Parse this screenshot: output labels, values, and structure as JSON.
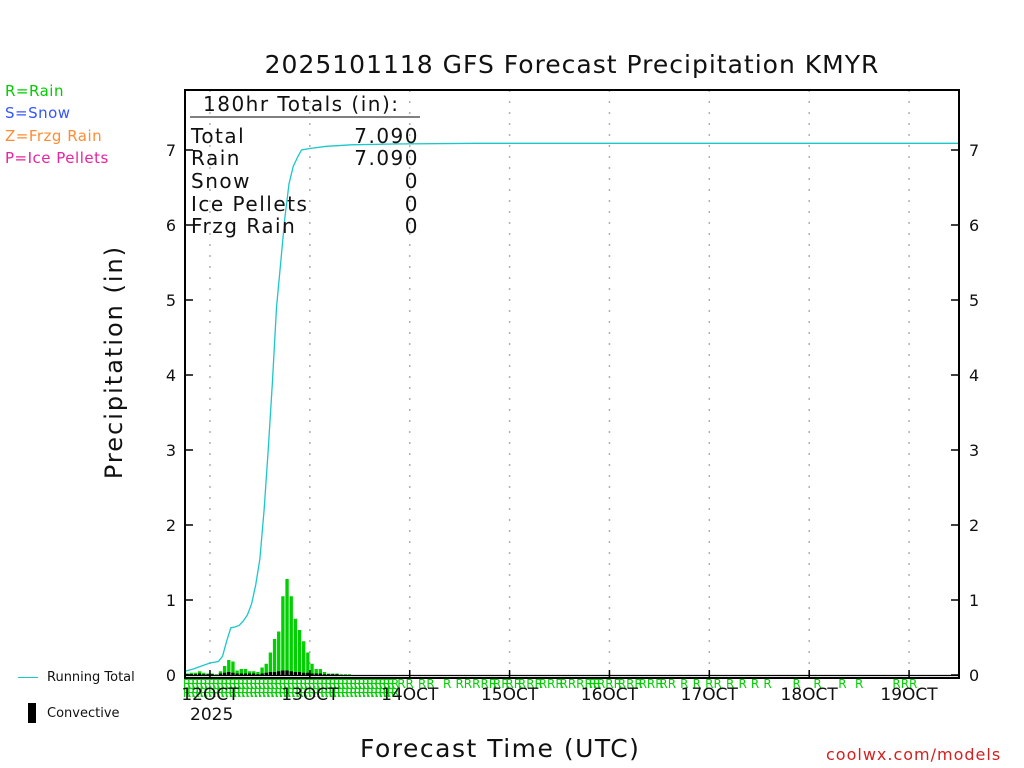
{
  "legend_top": [
    {
      "text": "R=Rain",
      "color": "#00cc00"
    },
    {
      "text": "S=Snow",
      "color": "#3355ff"
    },
    {
      "text": "Z=Frzg Rain",
      "color": "#ff8c33"
    },
    {
      "text": "P=Ice Pellets",
      "color": "#e8239b"
    }
  ],
  "legend_bottom": {
    "running_total": "Running Total",
    "convective": "Convective"
  },
  "totals": {
    "header": "180hr Totals (in):",
    "rows": [
      {
        "label": "Total",
        "value": "7.090"
      },
      {
        "label": "Rain",
        "value": "7.090"
      },
      {
        "label": "Snow",
        "value": "0"
      },
      {
        "label": "Ice Pellets",
        "value": "0"
      },
      {
        "label": "Frzg Rain",
        "value": "0"
      }
    ]
  },
  "credit": "coolwx.com/models",
  "year_label": "2025",
  "colors": {
    "running_total": "#1cc7c7",
    "rain_bar": "#00d000",
    "convective": "#000000",
    "grid": "#b0b0b0"
  },
  "chart_data": {
    "type": "bar",
    "title": "2025101118 GFS Forecast Precipitation KMYR",
    "xlabel": "Forecast Time (UTC)",
    "ylabel": "Precipitation (in)",
    "ylim": [
      0,
      7.6
    ],
    "yticks": [
      0,
      1,
      2,
      3,
      4,
      5,
      6,
      7
    ],
    "xlim_hours": [
      0,
      186
    ],
    "xticks": [
      {
        "h": 6,
        "label": "12OCT"
      },
      {
        "h": 30,
        "label": "13OCT"
      },
      {
        "h": 54,
        "label": "14OCT"
      },
      {
        "h": 78,
        "label": "15OCT"
      },
      {
        "h": 102,
        "label": "16OCT"
      },
      {
        "h": 126,
        "label": "17OCT"
      },
      {
        "h": 150,
        "label": "18OCT"
      },
      {
        "h": 174,
        "label": "19OCT"
      }
    ],
    "step_hours": 1,
    "bars": {
      "name": "Rain (1hr)",
      "start_hour": 0,
      "values": [
        0.02,
        0.03,
        0.03,
        0.05,
        0.03,
        0.02,
        0.02,
        0.01,
        0.05,
        0.12,
        0.2,
        0.18,
        0.06,
        0.08,
        0.08,
        0.05,
        0.05,
        0.04,
        0.1,
        0.15,
        0.3,
        0.48,
        0.58,
        1.05,
        1.28,
        1.05,
        0.75,
        0.6,
        0.45,
        0.3,
        0.15,
        0.08,
        0.08,
        0.04,
        0.02,
        0.02,
        0.02,
        0.01,
        0.01,
        0.01
      ]
    },
    "convective": {
      "name": "Convective",
      "start_hour": 0,
      "values": [
        0.01,
        0.01,
        0.01,
        0.02,
        0.01,
        0.01,
        0.01,
        0.0,
        0.02,
        0.03,
        0.04,
        0.03,
        0.02,
        0.02,
        0.02,
        0.02,
        0.02,
        0.01,
        0.02,
        0.03,
        0.04,
        0.04,
        0.05,
        0.06,
        0.06,
        0.05,
        0.04,
        0.04,
        0.03,
        0.03,
        0.02,
        0.02,
        0.02,
        0.01,
        0.01,
        0.01,
        0.01
      ]
    },
    "running_total": {
      "name": "Running Total",
      "points": [
        [
          0,
          0.05
        ],
        [
          2,
          0.08
        ],
        [
          4,
          0.12
        ],
        [
          6,
          0.16
        ],
        [
          8,
          0.18
        ],
        [
          9,
          0.25
        ],
        [
          10,
          0.45
        ],
        [
          11,
          0.63
        ],
        [
          12,
          0.64
        ],
        [
          13,
          0.66
        ],
        [
          14,
          0.72
        ],
        [
          15,
          0.8
        ],
        [
          16,
          0.95
        ],
        [
          17,
          1.2
        ],
        [
          18,
          1.55
        ],
        [
          19,
          2.2
        ],
        [
          20,
          3.0
        ],
        [
          21,
          3.9
        ],
        [
          22,
          4.9
        ],
        [
          23,
          5.5
        ],
        [
          24,
          6.1
        ],
        [
          25,
          6.55
        ],
        [
          26,
          6.78
        ],
        [
          27,
          6.9
        ],
        [
          28,
          7.0
        ],
        [
          30,
          7.02
        ],
        [
          34,
          7.05
        ],
        [
          40,
          7.07
        ],
        [
          50,
          7.08
        ],
        [
          70,
          7.09
        ],
        [
          186,
          7.09
        ]
      ]
    },
    "ptype_marks": {
      "label": "R",
      "dense_hours": [
        0,
        1,
        2,
        3,
        4,
        5,
        6,
        7,
        8,
        9,
        10,
        11,
        12,
        13,
        14,
        15,
        16,
        17,
        18,
        19,
        20,
        21,
        22,
        23,
        24,
        25,
        26,
        27,
        28,
        29,
        30,
        31,
        32,
        33,
        34,
        35,
        36,
        37,
        38,
        39,
        40,
        41,
        42,
        43,
        44,
        45,
        46,
        47,
        48,
        49,
        50
      ],
      "sparse_hours": [
        52,
        54,
        57,
        59,
        63,
        66,
        68,
        70,
        72,
        74,
        75,
        77,
        78,
        80,
        81,
        83,
        85,
        86,
        88,
        90,
        91,
        93,
        95,
        97,
        98,
        99,
        100,
        102,
        104,
        105,
        107,
        109,
        110,
        112,
        114,
        115,
        117,
        120,
        123,
        126,
        128,
        131,
        134,
        137,
        140,
        147,
        152,
        158,
        162,
        171,
        173,
        175
      ]
    }
  }
}
